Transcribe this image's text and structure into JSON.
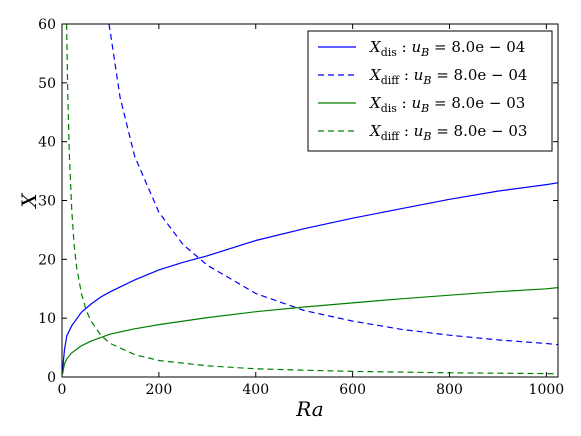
{
  "chart_data": {
    "type": "line",
    "xlabel": "Ra",
    "ylabel": "X",
    "xlim": [
      0,
      1024
    ],
    "ylim": [
      0,
      60
    ],
    "xticks": [
      "0",
      "200",
      "400",
      "600",
      "800",
      "1000"
    ],
    "yticks": [
      "0",
      "10",
      "20",
      "30",
      "40",
      "50",
      "60"
    ],
    "grid": false,
    "legend_position": "top-right",
    "series": [
      {
        "name": "X_dis : u_B = 8.0e − 04",
        "legend_main": "X",
        "legend_sub": "dis",
        "legend_rest": " : u",
        "legend_sub2": "B",
        "legend_tail": " = 8.0e − 04",
        "color": "#0000ff",
        "dash": "solid",
        "x": [
          1,
          5,
          10,
          20,
          40,
          60,
          80,
          100,
          150,
          200,
          250,
          300,
          400,
          500,
          600,
          700,
          800,
          900,
          1000,
          1024
        ],
        "y": [
          1.0,
          4.5,
          7.0,
          8.7,
          11.0,
          12.4,
          13.6,
          14.5,
          16.5,
          18.2,
          19.5,
          20.6,
          23.2,
          25.2,
          27.0,
          28.6,
          30.2,
          31.6,
          32.7,
          33.0
        ]
      },
      {
        "name": "X_diff : u_B = 8.0e − 04",
        "legend_main": "X",
        "legend_sub": "diff",
        "legend_rest": " : u",
        "legend_sub2": "B",
        "legend_tail": " = 8.0e − 04",
        "color": "#0000ff",
        "dash": "dashed",
        "x": [
          97,
          100,
          120,
          150,
          200,
          250,
          300,
          400,
          500,
          600,
          700,
          800,
          900,
          1000,
          1024
        ],
        "y": [
          60,
          58.5,
          47.5,
          37.5,
          28.0,
          22.5,
          19.0,
          14.2,
          11.3,
          9.5,
          8.1,
          7.1,
          6.3,
          5.7,
          5.5
        ]
      },
      {
        "name": "X_dis : u_B = 8.0e − 03",
        "legend_main": "X",
        "legend_sub": "dis",
        "legend_rest": " : u",
        "legend_sub2": "B",
        "legend_tail": " = 8.0e − 03",
        "color": "#008000",
        "dash": "solid",
        "x": [
          1,
          5,
          10,
          20,
          40,
          60,
          100,
          150,
          200,
          300,
          400,
          500,
          600,
          700,
          800,
          900,
          1000,
          1024
        ],
        "y": [
          0.5,
          2.2,
          3.1,
          4.1,
          5.3,
          6.1,
          7.3,
          8.2,
          8.9,
          10.1,
          11.1,
          11.9,
          12.6,
          13.3,
          13.9,
          14.5,
          15.0,
          15.2
        ]
      },
      {
        "name": "X_diff : u_B = 8.0e − 03",
        "legend_main": "X",
        "legend_sub": "diff",
        "legend_rest": " : u",
        "legend_sub2": "B",
        "legend_tail": " = 8.0e − 03",
        "color": "#008000",
        "dash": "dashed",
        "x": [
          9.5,
          12,
          15,
          20,
          25,
          30,
          40,
          50,
          60,
          80,
          100,
          150,
          200,
          300,
          400,
          500,
          600,
          800,
          1000,
          1024
        ],
        "y": [
          60,
          48,
          38,
          28.5,
          22.5,
          18.8,
          14.2,
          11.3,
          9.5,
          7.1,
          5.7,
          3.8,
          2.8,
          1.9,
          1.4,
          1.15,
          0.95,
          0.72,
          0.57,
          0.55
        ]
      }
    ]
  }
}
